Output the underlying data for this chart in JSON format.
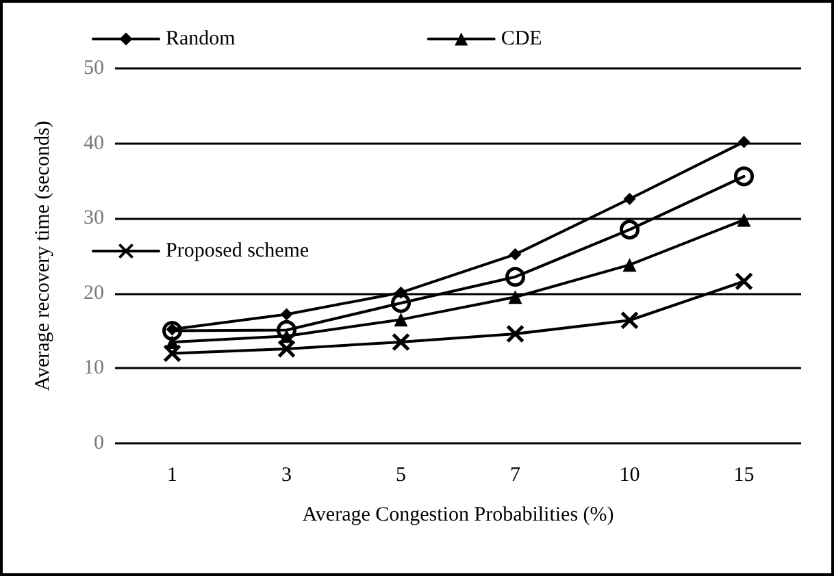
{
  "chart_data": {
    "type": "line",
    "xlabel": "Average Congestion Probabilities (%)",
    "ylabel": "Average recovery time (seconds)",
    "categories": [
      "1",
      "3",
      "5",
      "7",
      "10",
      "15"
    ],
    "series": [
      {
        "name": "Random",
        "color": "#000000",
        "marker": "diamond",
        "values": [
          15.2,
          17.2,
          20.1,
          25.2,
          32.6,
          40.2
        ]
      },
      {
        "color": "#000000",
        "marker": "circle",
        "values": [
          15.0,
          15.1,
          18.7,
          22.2,
          28.5,
          35.6
        ]
      },
      {
        "name": "CDE",
        "color": "#000000",
        "marker": "triangle",
        "values": [
          13.5,
          14.3,
          16.5,
          19.5,
          23.8,
          29.8
        ]
      },
      {
        "name": "Proposed scheme",
        "color": "#000000",
        "marker": "cross",
        "values": [
          12.0,
          12.6,
          13.5,
          14.6,
          16.4,
          21.6
        ]
      }
    ],
    "ylim": [
      0,
      50
    ],
    "yticks": [
      0,
      10,
      20,
      30,
      40,
      50
    ],
    "grid": "y",
    "legend": "top",
    "line_style": "solid"
  }
}
